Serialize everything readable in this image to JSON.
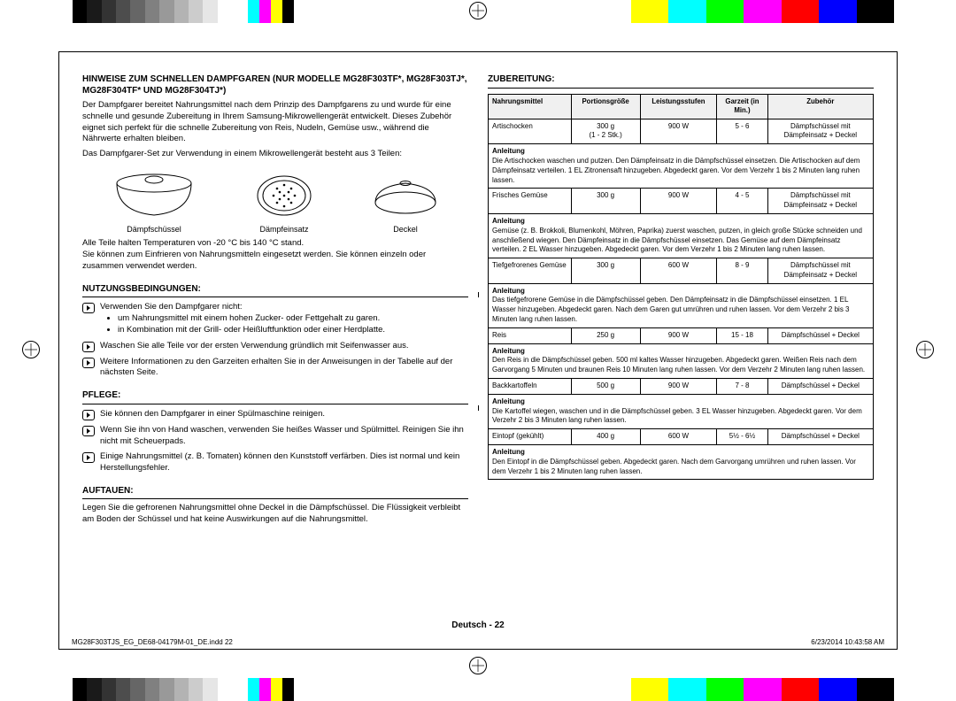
{
  "registration_colors": {
    "gray_steps": [
      "#000000",
      "#1a1a1a",
      "#333333",
      "#4d4d4d",
      "#666666",
      "#808080",
      "#999999",
      "#b3b3b3",
      "#cccccc",
      "#e6e6e6",
      "#ffffff"
    ],
    "cmyk": [
      "#00ffff",
      "#ff00ff",
      "#ffff00",
      "#000000"
    ],
    "rgb_bar": [
      "#ffffff",
      "#ffff00",
      "#00ffff",
      "#00ff00",
      "#ff00ff",
      "#ff0000",
      "#0000ff",
      "#000000"
    ]
  },
  "title": "HINWEISE ZUM SCHNELLEN DAMPFGAREN (NUR MODELLE MG28F303TF*, MG28F303TJ*, MG28F304TF* UND MG28F304TJ*)",
  "intro_1": "Der Dampfgarer bereitet Nahrungsmittel nach dem Prinzip des Dampfgarens zu und wurde für eine schnelle und gesunde Zubereitung in Ihrem Samsung-Mikrowellengerät entwickelt. Dieses Zubehör eignet sich perfekt für die schnelle Zubereitung von Reis, Nudeln, Gemüse usw., während die Nährwerte erhalten bleiben.",
  "intro_2": "Das Dampfgarer-Set zur Verwendung in einem Mikrowellengerät besteht aus 3 Teilen:",
  "parts": [
    {
      "label": "Dämpfschüssel"
    },
    {
      "label": "Dämpfeinsatz"
    },
    {
      "label": "Deckel"
    }
  ],
  "parts_note_1": "Alle Teile halten Temperaturen von -20 °C bis 140 °C stand.",
  "parts_note_2": "Sie können zum Einfrieren von Nahrungsmitteln eingesetzt werden. Sie können einzeln oder zusammen verwendet werden.",
  "sections": {
    "nutzung": {
      "heading": "NUTZUNGSBEDINGUNGEN:",
      "items": [
        {
          "text": "Verwenden Sie den Dampfgarer nicht:",
          "bullets": [
            "um Nahrungsmittel mit einem hohen Zucker- oder Fettgehalt zu garen.",
            "in Kombination mit der Grill- oder Heißluftfunktion oder einer Herdplatte."
          ]
        },
        {
          "text": "Waschen Sie alle Teile vor der ersten Verwendung gründlich mit Seifenwasser aus."
        },
        {
          "text": "Weitere Informationen zu den Garzeiten erhalten Sie in der Anweisungen in der Tabelle auf der nächsten Seite."
        }
      ]
    },
    "pflege": {
      "heading": "PFLEGE:",
      "items": [
        {
          "text": "Sie können den Dampfgarer in einer Spülmaschine reinigen."
        },
        {
          "text": "Wenn Sie ihn von Hand waschen, verwenden Sie heißes Wasser und Spülmittel. Reinigen Sie ihn nicht mit Scheuerpads."
        },
        {
          "text": "Einige Nahrungsmittel (z. B. Tomaten) können den Kunststoff verfärben. Dies ist normal und kein Herstellungsfehler."
        }
      ]
    },
    "auftauen": {
      "heading": "AUFTAUEN:",
      "text": "Legen Sie die gefrorenen Nahrungsmittel ohne Deckel in die Dämpfschüssel. Die Flüssigkeit verbleibt am Boden der Schüssel und hat keine Auswirkungen auf die Nahrungsmittel."
    },
    "zubereitung": {
      "heading": "ZUBEREITUNG:",
      "columns": [
        "Nahrungsmittel",
        "Portionsgröße",
        "Leistungsstufen",
        "Garzeit (in Min.)",
        "Zubehör"
      ],
      "rows": [
        {
          "food": "Artischocken",
          "portion": "300 g\n(1 - 2 Stk.)",
          "power": "900 W",
          "time": "5 - 6",
          "acc": "Dämpfschüssel mit Dämpfeinsatz + Deckel",
          "instr": "Die Artischocken waschen und putzen. Den Dämpfeinsatz in die Dämpfschüssel einsetzen. Die Artischocken auf dem Dämpfeinsatz verteilen. 1 EL Zitronensaft hinzugeben. Abgedeckt garen. Vor dem Verzehr 1 bis 2 Minuten lang ruhen lassen."
        },
        {
          "food": "Frisches Gemüse",
          "portion": "300 g",
          "power": "900 W",
          "time": "4 - 5",
          "acc": "Dämpfschüssel mit Dämpfeinsatz + Deckel",
          "instr": "Gemüse (z. B. Brokkoli, Blumenkohl, Möhren, Paprika) zuerst waschen, putzen, in gleich große Stücke schneiden und anschließend wiegen. Den Dämpfeinsatz in die Dämpfschüssel einsetzen. Das Gemüse auf dem Dämpfeinsatz verteilen. 2 EL Wasser hinzugeben. Abgedeckt garen. Vor dem Verzehr 1 bis 2 Minuten lang ruhen lassen."
        },
        {
          "food": "Tiefgefrorenes Gemüse",
          "portion": "300 g",
          "power": "600 W",
          "time": "8 - 9",
          "acc": "Dämpfschüssel mit Dämpfeinsatz + Deckel",
          "instr": "Das tiefgefrorene Gemüse in die Dämpfschüssel geben. Den Dämpfeinsatz in die Dämpfschüssel einsetzen. 1 EL Wasser hinzugeben. Abgedeckt garen. Nach dem Garen gut umrühren und ruhen lassen. Vor dem Verzehr 2 bis 3 Minuten lang ruhen lassen."
        },
        {
          "food": "Reis",
          "portion": "250 g",
          "power": "900 W",
          "time": "15 - 18",
          "acc": "Dämpfschüssel + Deckel",
          "instr": "Den Reis in die Dämpfschüssel geben. 500 ml kaltes Wasser hinzugeben. Abgedeckt garen. Weißen Reis nach dem Garvorgang 5 Minuten und braunen Reis 10 Minuten lang ruhen lassen. Vor dem Verzehr 2 Minuten lang ruhen lassen."
        },
        {
          "food": "Backkartoffeln",
          "portion": "500 g",
          "power": "900 W",
          "time": "7 - 8",
          "acc": "Dämpfschüssel + Deckel",
          "instr": "Die Kartoffel wiegen, waschen und in die Dämpfschüssel geben. 3 EL Wasser hinzugeben. Abgedeckt garen. Vor dem Verzehr 2 bis 3 Minuten lang ruhen lassen."
        },
        {
          "food": "Eintopf (gekühlt)",
          "portion": "400 g",
          "power": "600 W",
          "time": "5½ - 6½",
          "acc": "Dämpfschüssel + Deckel",
          "instr": "Den Eintopf in die Dämpfschüssel geben. Abgedeckt garen. Nach dem Garvorgang umrühren und ruhen lassen. Vor dem Verzehr 1 bis 2 Minuten lang ruhen lassen."
        }
      ],
      "instr_label": "Anleitung"
    }
  },
  "footer_center": "Deutsch - 22",
  "print_file": "MG28F303TJS_EG_DE68-04179M-01_DE.indd   22",
  "print_time": "6/23/2014   10:43:58 AM"
}
